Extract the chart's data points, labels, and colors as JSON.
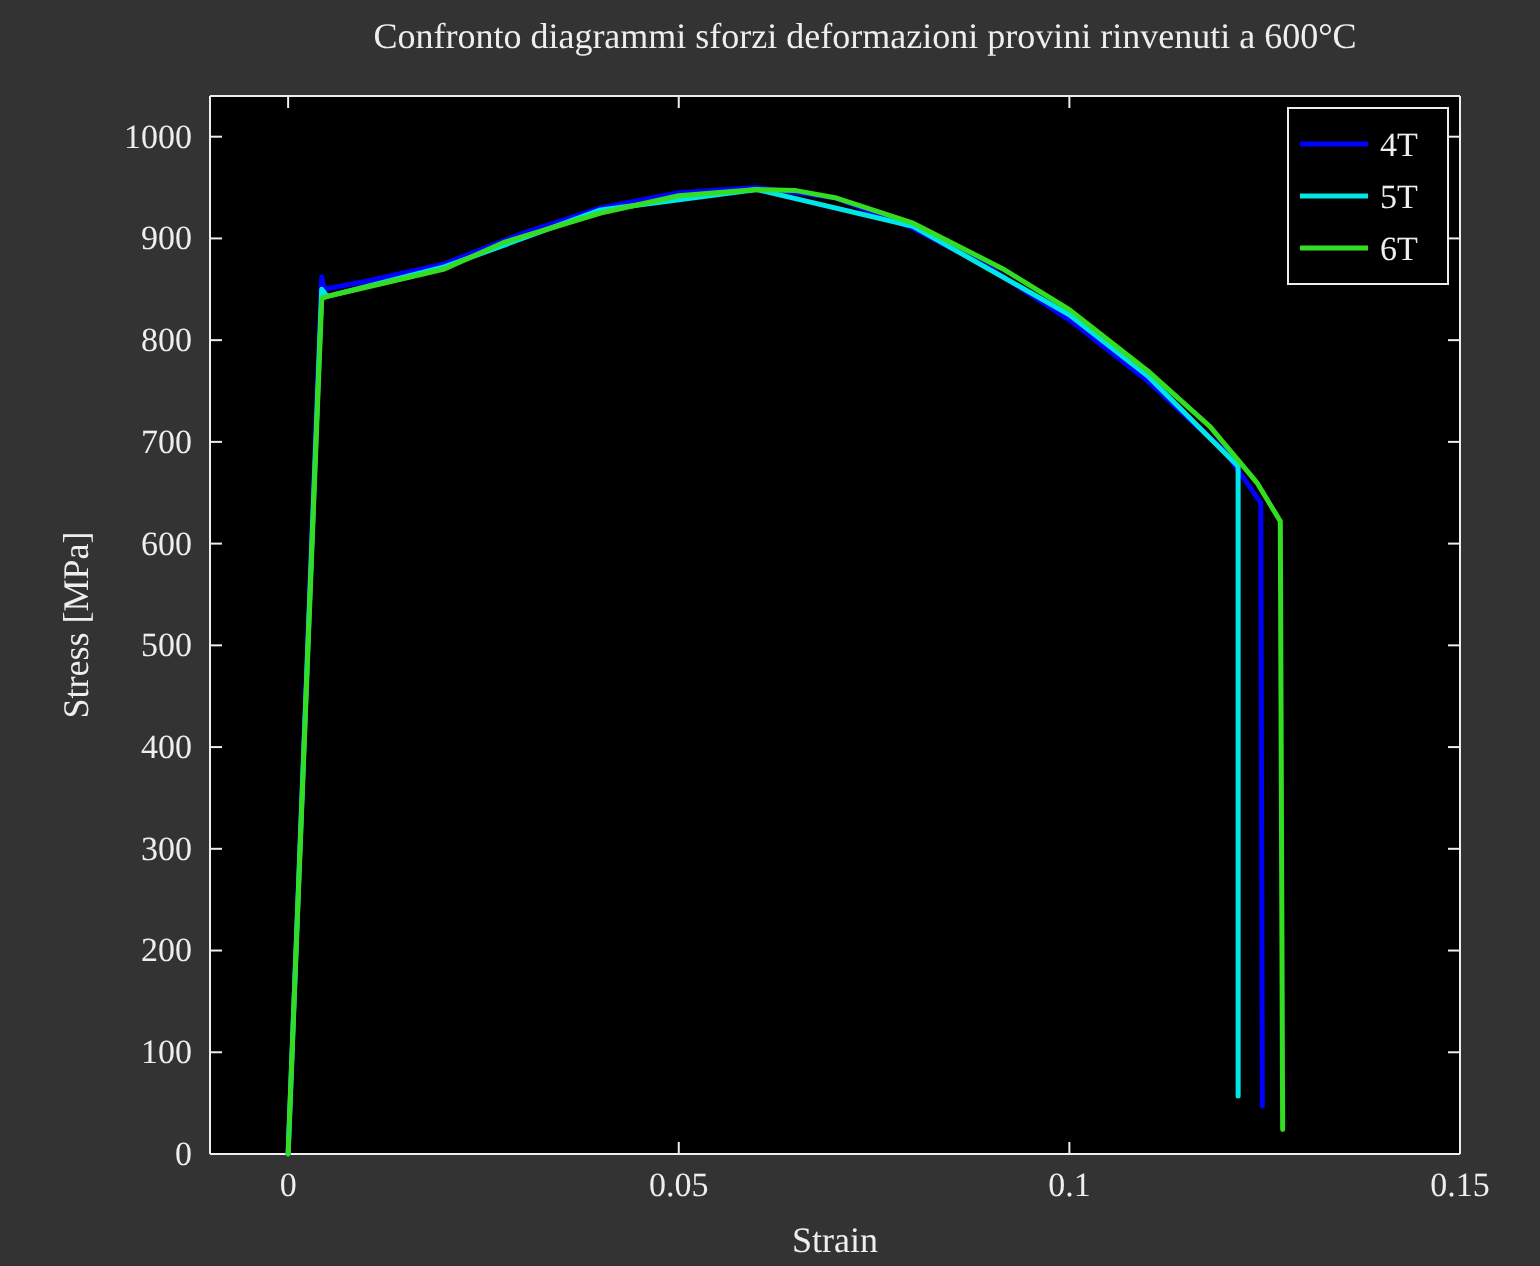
{
  "chart_data": {
    "type": "line",
    "title": "Confronto diagrammi sforzi deformazioni provini rinvenuti a 600°C",
    "xlabel": "Strain",
    "ylabel": "Stress [MPa]",
    "xlim": [
      -0.01,
      0.15
    ],
    "xticks": [
      0,
      0.05,
      {
        "value": 0.1,
        "label": "0.1"
      },
      0.15
    ],
    "ylim": [
      0,
      1040
    ],
    "yticks": [
      0,
      100,
      200,
      300,
      400,
      500,
      600,
      700,
      800,
      900,
      1000
    ],
    "grid": false,
    "legend": "top right",
    "line_style": "solid",
    "marker": "none",
    "series": [
      {
        "name": "4T",
        "color": "#0000ff",
        "x": [
          0,
          0.0043,
          0.0046,
          0.01,
          0.02,
          0.03,
          0.04,
          0.05,
          0.06,
          0.07,
          0.08,
          0.09,
          0.1,
          0.11,
          0.12,
          0.1245,
          0.1247
        ],
        "values": [
          0,
          862,
          850,
          858,
          875,
          905,
          930,
          945,
          950,
          940,
          910,
          870,
          820,
          760,
          690,
          640,
          47
        ]
      },
      {
        "name": "5T",
        "color": "#00e5e5",
        "x": [
          0,
          0.0043,
          0.005,
          0.02,
          0.04,
          0.06,
          0.08,
          0.1,
          0.11,
          0.1216,
          0.1216
        ],
        "values": [
          0,
          850,
          843,
          872,
          928,
          948,
          912,
          825,
          765,
          676,
          57
        ]
      },
      {
        "name": "6T",
        "color": "#33dd22",
        "x": [
          0,
          0.0043,
          0.005,
          0.01,
          0.02,
          0.0276,
          0.04,
          0.05,
          0.06,
          0.065,
          0.07,
          0.08,
          0.0915,
          0.1,
          0.11,
          0.118,
          0.124,
          0.127,
          0.1273
        ],
        "values": [
          0,
          841,
          843,
          852,
          870,
          896,
          925,
          942,
          948,
          947,
          940,
          915,
          870,
          830,
          770,
          715,
          660,
          622,
          24
        ]
      }
    ]
  }
}
